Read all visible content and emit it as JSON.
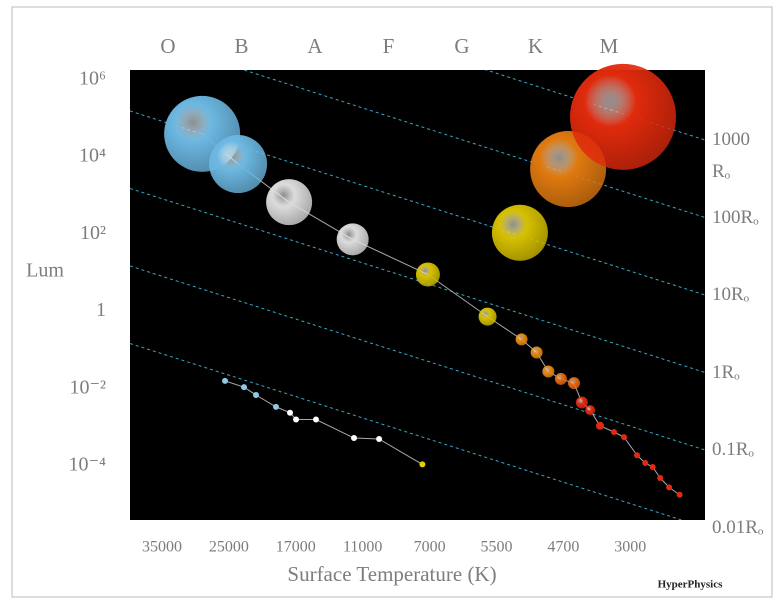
{
  "chart_data": {
    "type": "scatter",
    "spectral_classes": [
      "O",
      "B",
      "A",
      "F",
      "G",
      "K",
      "M"
    ],
    "xlabel": "Surface Temperature (K)",
    "ylabel": "Lum",
    "credit": "HyperPhysics",
    "xlim": [
      40000,
      2500
    ],
    "xticks": [
      35000,
      25000,
      17000,
      11000,
      7000,
      5500,
      4700,
      3000
    ],
    "ylim": [
      4e-06,
      1800000
    ],
    "log_y": true,
    "yticks": [
      {
        "value": 1000000,
        "label": "10⁶"
      },
      {
        "value": 10000,
        "label": "10⁴"
      },
      {
        "value": 100,
        "label": "10²"
      },
      1,
      {
        "value": 0.01,
        "label": "10⁻²"
      },
      {
        "value": 0.0001,
        "label": "10⁻⁴"
      }
    ],
    "radius_lines": [
      "1000 Rₒ",
      "100Rₒ",
      "10Rₒ",
      "1Rₒ",
      "0.1Rₒ",
      "0.01Rₒ"
    ],
    "series": [
      {
        "line": true,
        "x": [
          29000,
          23900,
          17800,
          11900,
          7100,
          5700,
          5200,
          5020,
          4880,
          4730,
          4430,
          4230,
          4020,
          3770,
          3415,
          3160,
          2955,
          2900,
          2850,
          2800,
          2740,
          2670
        ],
        "values": [
          40000,
          6600,
          680,
          74,
          9.1,
          0.74,
          0.19,
          0.087,
          0.028,
          0.018,
          0.014,
          0.0044,
          0.0028,
          0.0011,
          0.00076,
          0.00056,
          0.00019,
          0.00012,
          9.4e-05,
          4.9e-05,
          2.8e-05,
          1.8e-05
        ],
        "sizes": [
          38,
          29,
          23,
          16,
          12,
          9,
          6,
          6,
          6,
          6,
          6,
          6,
          5,
          4,
          3,
          3,
          3,
          3,
          3,
          3,
          3,
          3
        ],
        "colors": [
          "#6cb8e2",
          "#6cb8e2",
          "#dcdcdc",
          "#dcdcdc",
          "#d6c000",
          "#d6c000",
          "#e88a14",
          "#e88a14",
          "#e88a14",
          "#e66a12",
          "#e66a12",
          "#e22a10",
          "#e22a10",
          "#e22a10",
          "#e22a10",
          "#e22a10",
          "#e22a10",
          "#e22a10",
          "#e22a10",
          "#e22a10",
          "#e22a10",
          "#e22a10"
        ]
      },
      {
        "line": false,
        "x": [
          5220,
          4580,
          3185
        ],
        "values": [
          110,
          4900,
          110000
        ],
        "sizes": [
          28,
          38,
          53
        ],
        "colors": [
          "#d6c000",
          "#e07a10",
          "#e02a0c"
        ]
      },
      {
        "line": true,
        "x": [
          25580,
          23190,
          21760,
          19370,
          17690,
          16980,
          15190,
          11780,
          10020,
          7430
        ],
        "values": [
          0.016,
          0.011,
          0.0069,
          0.0034,
          0.0024,
          0.0016,
          0.0016,
          0.00053,
          0.0005,
          0.00011
        ],
        "sizes": [
          3,
          3,
          3,
          3,
          3,
          3,
          3,
          3,
          3,
          3
        ],
        "colors": [
          "#8ecae6",
          "#8ecae6",
          "#8ecae6",
          "#8ecae6",
          "#ffffff",
          "#ffffff",
          "#ffffff",
          "#ffffff",
          "#ffffff",
          "#e8d000"
        ]
      }
    ]
  }
}
